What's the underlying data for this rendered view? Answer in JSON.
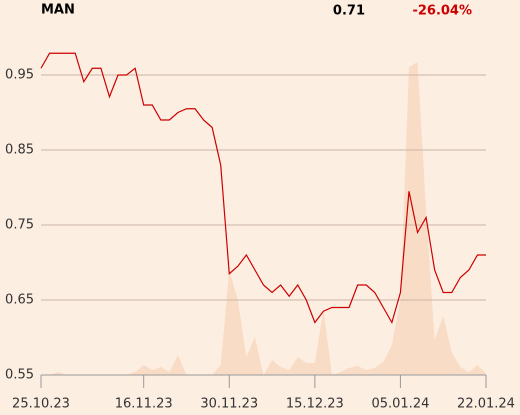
{
  "chart_data": {
    "type": "line",
    "title": "MAN",
    "last": "0.71",
    "change": "-26.04%",
    "categories": [
      "25.10.23",
      null,
      null,
      null,
      null,
      null,
      null,
      null,
      null,
      null,
      null,
      null,
      "16.11.23",
      null,
      null,
      null,
      null,
      null,
      null,
      null,
      null,
      null,
      "30.11.23",
      null,
      null,
      null,
      null,
      null,
      null,
      null,
      null,
      null,
      "15.12.23",
      null,
      null,
      null,
      null,
      null,
      null,
      null,
      null,
      null,
      "05.01.24",
      null,
      null,
      null,
      null,
      null,
      null,
      null,
      null,
      null,
      "22.01.24"
    ],
    "series": [
      {
        "name": "MAN",
        "color": "#cc0000",
        "values": [
          0.959,
          0.979,
          0.979,
          0.979,
          0.979,
          0.941,
          0.959,
          0.959,
          0.921,
          0.95,
          0.95,
          0.959,
          0.91,
          0.91,
          0.89,
          0.89,
          0.9,
          0.905,
          0.905,
          0.89,
          0.88,
          0.83,
          0.685,
          0.695,
          0.71,
          0.69,
          0.67,
          0.66,
          0.67,
          0.655,
          0.67,
          0.65,
          0.62,
          0.635,
          0.64,
          0.64,
          0.64,
          0.67,
          0.67,
          0.66,
          0.64,
          0.62,
          0.66,
          0.795,
          0.74,
          0.76,
          0.69,
          0.66,
          0.66,
          0.68,
          0.69,
          0.71,
          0.71
        ]
      },
      {
        "name": "Volume",
        "color": "#f9dcc6",
        "axis": "y2",
        "values": [
          0,
          0,
          3,
          0,
          0,
          0,
          0,
          0,
          0,
          0,
          0,
          3,
          10,
          5,
          8,
          3,
          20,
          0,
          0,
          0,
          0,
          10,
          105,
          75,
          18,
          38,
          0,
          15,
          8,
          5,
          18,
          12,
          12,
          65,
          0,
          3,
          7,
          9,
          5,
          7,
          13,
          30,
          75,
          308,
          313,
          165,
          35,
          59,
          23,
          8,
          3,
          10,
          2
        ]
      }
    ],
    "ylim": [
      0.55,
      1.0
    ],
    "yticks": [
      0.55,
      0.65,
      0.75,
      0.85,
      0.95
    ],
    "y2lim": [
      0,
      337.5
    ],
    "grid": true
  }
}
